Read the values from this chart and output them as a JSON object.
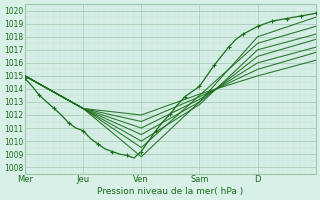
{
  "bg_color": "#d8f0e8",
  "grid_color": "#a0c8b0",
  "line_color": "#1a6e1a",
  "marker_color": "#1a6e1a",
  "ylabel_values": [
    1008,
    1009,
    1010,
    1011,
    1012,
    1013,
    1014,
    1015,
    1016,
    1017,
    1018,
    1019,
    1020
  ],
  "ylim": [
    1007.5,
    1020.5
  ],
  "xlim": [
    0,
    120
  ],
  "xtick_positions": [
    0,
    24,
    48,
    72,
    96,
    120
  ],
  "xtick_labels": [
    "Mer",
    "Jeu",
    "Ven",
    "Sam",
    "D",
    ""
  ],
  "xlabel": "Pression niveau de la mer( hPa )",
  "lines": [
    [
      0,
      1014.8,
      3,
      1014.2,
      6,
      1013.5,
      9,
      1013.0,
      12,
      1012.5,
      15,
      1012.0,
      18,
      1011.4,
      21,
      1011.0,
      24,
      1010.8,
      27,
      1010.2,
      30,
      1009.8,
      33,
      1009.4,
      36,
      1009.2,
      39,
      1009.0,
      42,
      1008.9,
      45,
      1008.7,
      48,
      1009.2,
      51,
      1010.0,
      54,
      1010.8,
      57,
      1011.5,
      60,
      1012.1,
      63,
      1012.8,
      66,
      1013.4,
      69,
      1013.8,
      72,
      1014.2,
      75,
      1015.0,
      78,
      1015.8,
      81,
      1016.5,
      84,
      1017.2,
      87,
      1017.8,
      90,
      1018.2,
      93,
      1018.5,
      96,
      1018.8,
      99,
      1019.0,
      102,
      1019.2,
      105,
      1019.3,
      108,
      1019.4,
      111,
      1019.5,
      114,
      1019.6,
      117,
      1019.7,
      120,
      1019.8
    ],
    [
      0,
      1015.0,
      24,
      1012.5,
      48,
      1008.8,
      72,
      1013.0,
      96,
      1018.0,
      120,
      1019.5
    ],
    [
      0,
      1015.0,
      24,
      1012.5,
      48,
      1009.5,
      72,
      1013.5,
      96,
      1017.5,
      120,
      1018.8
    ],
    [
      0,
      1015.0,
      24,
      1012.5,
      48,
      1010.0,
      72,
      1012.8,
      96,
      1017.0,
      120,
      1018.2
    ],
    [
      0,
      1015.0,
      24,
      1012.5,
      48,
      1010.5,
      72,
      1013.0,
      96,
      1016.5,
      120,
      1017.8
    ],
    [
      0,
      1015.0,
      24,
      1012.5,
      48,
      1011.0,
      72,
      1013.2,
      96,
      1016.0,
      120,
      1017.2
    ],
    [
      0,
      1015.0,
      24,
      1012.5,
      48,
      1011.5,
      72,
      1013.4,
      96,
      1015.5,
      120,
      1016.8
    ],
    [
      0,
      1015.0,
      24,
      1012.5,
      48,
      1012.0,
      72,
      1013.6,
      96,
      1015.0,
      120,
      1016.2
    ]
  ]
}
